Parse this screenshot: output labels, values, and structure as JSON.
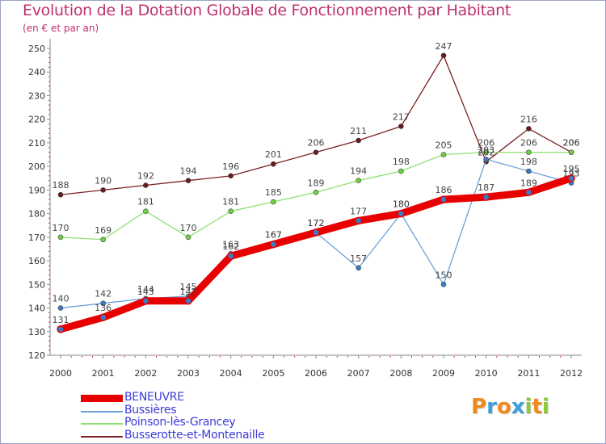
{
  "chart_data": {
    "type": "line",
    "title": "Evolution de la Dotation Globale de Fonctionnement par Habitant",
    "subtitle": "(en € et par an)",
    "xlabel": "",
    "ylabel": "",
    "categories": [
      "2000",
      "2001",
      "2002",
      "2003",
      "2004",
      "2005",
      "2006",
      "2007",
      "2008",
      "2009",
      "2010",
      "2011",
      "2012"
    ],
    "ylim": [
      120,
      250
    ],
    "yticks": [
      120,
      130,
      140,
      150,
      160,
      170,
      180,
      190,
      200,
      210,
      220,
      230,
      240,
      250
    ],
    "grid": false,
    "legend_position": "bottom-left",
    "series": [
      {
        "name": "BENEUVRE",
        "color": "#e80000",
        "marker": "#3a7cc4",
        "values": [
          131,
          136,
          143,
          143,
          162,
          167,
          172,
          177,
          180,
          186,
          187,
          189,
          195
        ]
      },
      {
        "name": "Bussières",
        "color": "#6aa2d8",
        "marker": "#3a7cc4",
        "values": [
          140,
          142,
          144,
          145,
          163,
          167,
          172,
          157,
          180,
          150,
          203,
          198,
          193
        ]
      },
      {
        "name": "Poinson-lès-Grancey",
        "color": "#8fe070",
        "marker": "#6fd040",
        "values": [
          170,
          169,
          181,
          170,
          181,
          185,
          189,
          194,
          198,
          205,
          206,
          206,
          206
        ]
      },
      {
        "name": "Busserotte-et-Montenaille",
        "color": "#7a2020",
        "marker": "#6a1a1a",
        "values": [
          188,
          190,
          192,
          194,
          196,
          201,
          206,
          211,
          217,
          247,
          202,
          216,
          206
        ]
      }
    ]
  },
  "legend": {
    "items": [
      "BENEUVRE",
      "Bussières",
      "Poinson-lès-Grancey",
      "Busserotte-et-Montenaille"
    ]
  },
  "logo": {
    "text": [
      "P",
      "r",
      "o",
      "x",
      "i",
      "t",
      "i"
    ],
    "colors": [
      "#f08a1c",
      "#3aa0e0",
      "#f08a1c",
      "#3aa0e0",
      "#8cc83c",
      "#f08a1c",
      "#8cc83c"
    ]
  }
}
